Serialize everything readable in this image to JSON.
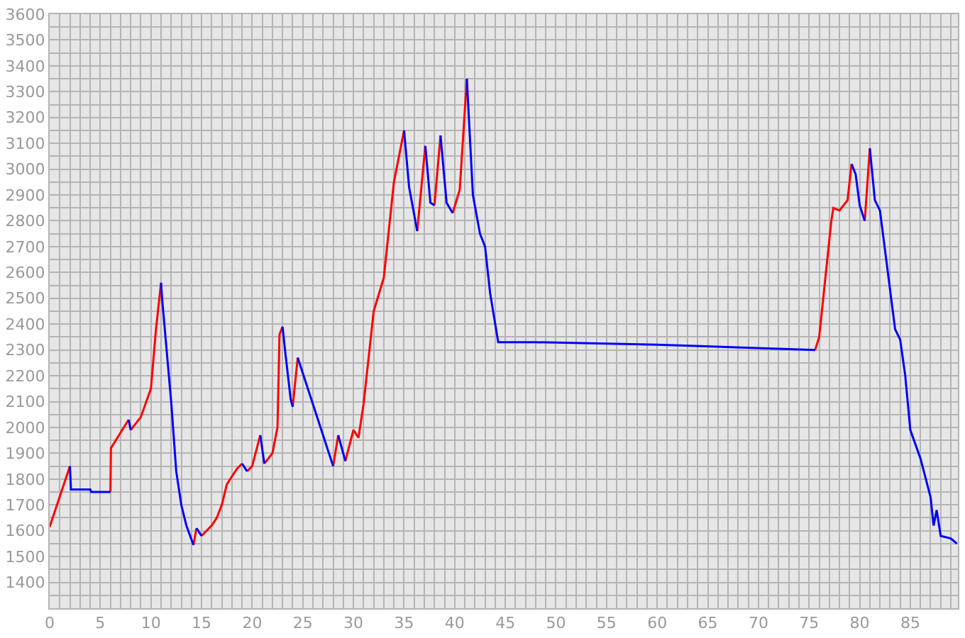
{
  "chart_data": {
    "type": "line",
    "series": [
      {
        "color": "#ff0000",
        "x": [
          0,
          2,
          null,
          6,
          6.05,
          7.8,
          null,
          8,
          9,
          10,
          10.5,
          11,
          null,
          14.2,
          14.5,
          null,
          15,
          16,
          16.5,
          17,
          17.5,
          18.5,
          19,
          null,
          19.5,
          20,
          20.8,
          null,
          21.2,
          22,
          22.5,
          22.7,
          23,
          null,
          24,
          24.5,
          null,
          28,
          28.5,
          null,
          29.2,
          30,
          30.5,
          31,
          32,
          33,
          34,
          35,
          null,
          36.3,
          37.1,
          null,
          38,
          38.6,
          null,
          39.8,
          40.5,
          41.2,
          null,
          75.6,
          76,
          77.2,
          77.4,
          78,
          78.8,
          79.2,
          null,
          80.5,
          81
        ],
        "values": [
          1615,
          1850,
          null,
          1750,
          1920,
          2030,
          null,
          1990,
          2040,
          2150,
          2380,
          2560,
          null,
          1545,
          1610,
          null,
          1580,
          1620,
          1650,
          1700,
          1780,
          1840,
          1860,
          null,
          1830,
          1850,
          1970,
          null,
          1860,
          1900,
          2000,
          2360,
          2390,
          null,
          2080,
          2270,
          null,
          1850,
          1970,
          null,
          1870,
          1990,
          1960,
          2090,
          2450,
          2580,
          2950,
          3150,
          null,
          2760,
          3090,
          null,
          2860,
          3130,
          null,
          2830,
          2920,
          3350,
          null,
          2300,
          2350,
          2800,
          2850,
          2840,
          2880,
          3020,
          null,
          2800,
          3080
        ]
      },
      {
        "color": "#0000ff",
        "x": [
          2,
          2.1,
          4,
          4.1,
          6,
          null,
          7.8,
          8,
          null,
          11,
          11.1,
          12,
          12.5,
          13,
          13.5,
          14.2,
          null,
          14.5,
          15,
          null,
          19,
          19.5,
          null,
          20.8,
          21.2,
          null,
          23,
          23.3,
          23.8,
          24,
          null,
          24.5,
          28,
          null,
          28.5,
          29.2,
          null,
          35,
          35.5,
          36.3,
          null,
          37.1,
          37.6,
          38,
          null,
          38.6,
          39.2,
          39.8,
          null,
          41.2,
          41.8,
          42.5,
          43,
          43.5,
          44.3,
          48,
          60,
          75.6,
          null,
          79.2,
          79.6,
          80,
          80.5,
          null,
          81,
          81.5,
          82,
          83.5,
          84,
          84.5,
          85,
          86,
          87,
          87.3,
          87.6,
          88,
          89,
          89.6
        ],
        "values": [
          1850,
          1760,
          1760,
          1750,
          1750,
          null,
          2030,
          1990,
          null,
          2560,
          2500,
          2100,
          1830,
          1700,
          1620,
          1545,
          null,
          1610,
          1580,
          null,
          1860,
          1830,
          null,
          1970,
          1860,
          null,
          2390,
          2280,
          2110,
          2080,
          null,
          2270,
          1850,
          null,
          1970,
          1870,
          null,
          3150,
          2930,
          2760,
          null,
          3090,
          2870,
          2860,
          null,
          3130,
          2870,
          2830,
          null,
          3350,
          2900,
          2750,
          2700,
          2520,
          2330,
          2330,
          2320,
          2300,
          null,
          3020,
          2980,
          2860,
          2800,
          null,
          3080,
          2880,
          2840,
          2380,
          2340,
          2200,
          1990,
          1880,
          1730,
          1620,
          1680,
          1580,
          1570,
          1550
        ]
      }
    ],
    "xlim": [
      0,
      89.7
    ],
    "ylim": [
      1300,
      3600
    ],
    "xticks": [
      0,
      {
        "value": 1,
        "label": null
      },
      {
        "value": 2,
        "label": null
      },
      {
        "value": 3,
        "label": null
      },
      {
        "value": 4,
        "label": null
      },
      5,
      {
        "value": 6,
        "label": null
      },
      {
        "value": 7,
        "label": null
      },
      {
        "value": 8,
        "label": null
      },
      {
        "value": 9,
        "label": null
      },
      10,
      {
        "value": 11,
        "label": null
      },
      {
        "value": 12,
        "label": null
      },
      {
        "value": 13,
        "label": null
      },
      {
        "value": 14,
        "label": null
      },
      15,
      {
        "value": 16,
        "label": null
      },
      {
        "value": 17,
        "label": null
      },
      {
        "value": 18,
        "label": null
      },
      {
        "value": 19,
        "label": null
      },
      20,
      {
        "value": 21,
        "label": null
      },
      {
        "value": 22,
        "label": null
      },
      {
        "value": 23,
        "label": null
      },
      {
        "value": 24,
        "label": null
      },
      25,
      {
        "value": 26,
        "label": null
      },
      {
        "value": 27,
        "label": null
      },
      {
        "value": 28,
        "label": null
      },
      {
        "value": 29,
        "label": null
      },
      30,
      {
        "value": 31,
        "label": null
      },
      {
        "value": 32,
        "label": null
      },
      {
        "value": 33,
        "label": null
      },
      {
        "value": 34,
        "label": null
      },
      35,
      {
        "value": 36,
        "label": null
      },
      {
        "value": 37,
        "label": null
      },
      {
        "value": 38,
        "label": null
      },
      {
        "value": 39,
        "label": null
      },
      40,
      {
        "value": 41,
        "label": null
      },
      {
        "value": 42,
        "label": null
      },
      {
        "value": 43,
        "label": null
      },
      {
        "value": 44,
        "label": null
      },
      45,
      {
        "value": 46,
        "label": null
      },
      {
        "value": 47,
        "label": null
      },
      {
        "value": 48,
        "label": null
      },
      {
        "value": 49,
        "label": null
      },
      50,
      {
        "value": 51,
        "label": null
      },
      {
        "value": 52,
        "label": null
      },
      {
        "value": 53,
        "label": null
      },
      {
        "value": 54,
        "label": null
      },
      55,
      {
        "value": 56,
        "label": null
      },
      {
        "value": 57,
        "label": null
      },
      {
        "value": 58,
        "label": null
      },
      {
        "value": 59,
        "label": null
      },
      60,
      {
        "value": 61,
        "label": null
      },
      {
        "value": 62,
        "label": null
      },
      {
        "value": 63,
        "label": null
      },
      {
        "value": 64,
        "label": null
      },
      65,
      {
        "value": 66,
        "label": null
      },
      {
        "value": 67,
        "label": null
      },
      {
        "value": 68,
        "label": null
      },
      {
        "value": 69,
        "label": null
      },
      70,
      {
        "value": 71,
        "label": null
      },
      {
        "value": 72,
        "label": null
      },
      {
        "value": 73,
        "label": null
      },
      {
        "value": 74,
        "label": null
      },
      75,
      {
        "value": 76,
        "label": null
      },
      {
        "value": 77,
        "label": null
      },
      {
        "value": 78,
        "label": null
      },
      {
        "value": 79,
        "label": null
      },
      80,
      {
        "value": 81,
        "label": null
      },
      {
        "value": 82,
        "label": null
      },
      {
        "value": 83,
        "label": null
      },
      {
        "value": 84,
        "label": null
      },
      85,
      {
        "value": 86,
        "label": null
      },
      {
        "value": 87,
        "label": null
      },
      {
        "value": 88,
        "label": null
      },
      {
        "value": 89,
        "label": null
      }
    ],
    "yticks": [
      {
        "value": 1350,
        "label": null
      },
      1400,
      {
        "value": 1450,
        "label": null
      },
      1500,
      {
        "value": 1550,
        "label": null
      },
      1600,
      {
        "value": 1650,
        "label": null
      },
      1700,
      {
        "value": 1750,
        "label": null
      },
      1800,
      {
        "value": 1850,
        "label": null
      },
      1900,
      {
        "value": 1950,
        "label": null
      },
      2000,
      {
        "value": 2050,
        "label": null
      },
      2100,
      {
        "value": 2150,
        "label": null
      },
      2200,
      {
        "value": 2250,
        "label": null
      },
      2300,
      {
        "value": 2350,
        "label": null
      },
      2400,
      {
        "value": 2450,
        "label": null
      },
      2500,
      {
        "value": 2550,
        "label": null
      },
      2600,
      {
        "value": 2650,
        "label": null
      },
      2700,
      {
        "value": 2750,
        "label": null
      },
      2800,
      {
        "value": 2850,
        "label": null
      },
      2900,
      {
        "value": 2950,
        "label": null
      },
      3000,
      {
        "value": 3050,
        "label": null
      },
      3100,
      {
        "value": 3150,
        "label": null
      },
      3200,
      {
        "value": 3250,
        "label": null
      },
      3300,
      {
        "value": 3350,
        "label": null
      },
      3400,
      {
        "value": 3450,
        "label": null
      },
      3500,
      {
        "value": 3550,
        "label": null
      },
      3600
    ],
    "grid": true,
    "marker": "none",
    "line_style": "solid"
  }
}
